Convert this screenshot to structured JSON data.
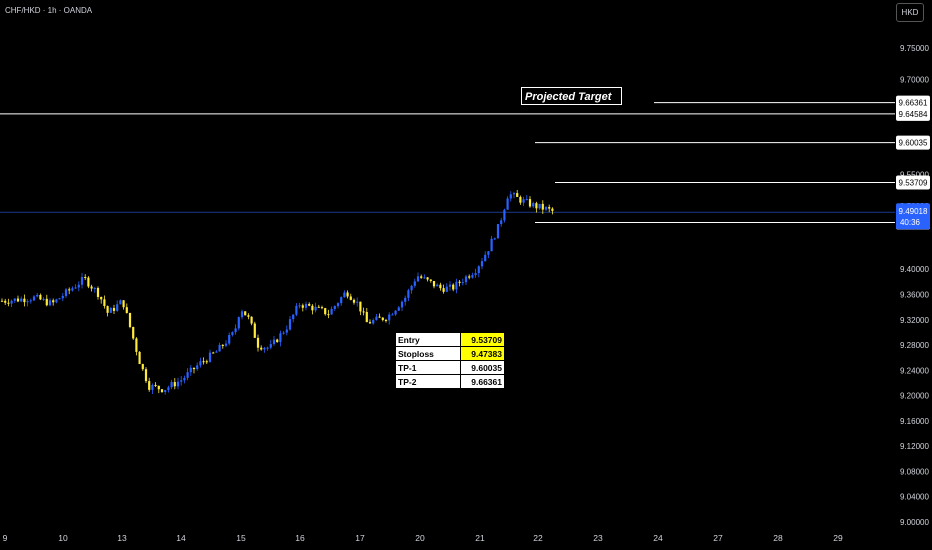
{
  "header": {
    "symbol": "CHF/HKD · 1h · OANDA",
    "currency": "HKD"
  },
  "annotations": {
    "projected_target": "Projected Target"
  },
  "price_tags": {
    "current_price": "9.49018",
    "countdown": "40:36",
    "accent_color": "#2962ff"
  },
  "levels_table": {
    "rows": [
      {
        "label": "Entry",
        "value": "9.53709",
        "highlight": true
      },
      {
        "label": "Stoploss",
        "value": "9.47383",
        "highlight": true
      },
      {
        "label": "TP-1",
        "value": "9.60035",
        "highlight": false
      },
      {
        "label": "TP-2",
        "value": "9.66361",
        "highlight": false
      }
    ]
  },
  "chart_data": {
    "type": "candlestick",
    "title": "",
    "xlabel": "",
    "ylabel": "",
    "ylim": [
      9.0,
      9.78
    ],
    "y_ticks": [
      "9.75000",
      "9.70000",
      "9.55000",
      "9.50000",
      "9.40000",
      "9.36000",
      "9.32000",
      "9.28000",
      "9.24000",
      "9.20000",
      "9.16000",
      "9.12000",
      "9.08000",
      "9.04000",
      "9.00000"
    ],
    "x_ticks": [
      "9",
      "10",
      "13",
      "14",
      "15",
      "16",
      "17",
      "20",
      "21",
      "22",
      "23",
      "24",
      "27",
      "28",
      "29"
    ],
    "horizontal_levels": [
      {
        "price": 9.66361,
        "label": "9.66361"
      },
      {
        "price": 9.64584,
        "label": "9.64584"
      },
      {
        "price": 9.60035,
        "label": "9.60035"
      },
      {
        "price": 9.53709,
        "label": "9.53709"
      },
      {
        "price": 9.47383,
        "label": "9.47383"
      }
    ],
    "current_price": 9.49018,
    "up_color": "#2962ff",
    "down_color": "#ffeb3b",
    "price_path": [
      {
        "t": 0.0,
        "p": 9.35
      },
      {
        "t": 0.5,
        "p": 9.355
      },
      {
        "t": 0.8,
        "p": 9.345
      },
      {
        "t": 1.0,
        "p": 9.36
      },
      {
        "t": 1.35,
        "p": 9.385
      },
      {
        "t": 1.6,
        "p": 9.36
      },
      {
        "t": 1.75,
        "p": 9.33
      },
      {
        "t": 2.0,
        "p": 9.35
      },
      {
        "t": 2.15,
        "p": 9.3
      },
      {
        "t": 2.3,
        "p": 9.25
      },
      {
        "t": 2.45,
        "p": 9.215
      },
      {
        "t": 2.7,
        "p": 9.21
      },
      {
        "t": 3.0,
        "p": 9.225
      },
      {
        "t": 3.3,
        "p": 9.25
      },
      {
        "t": 3.6,
        "p": 9.27
      },
      {
        "t": 3.9,
        "p": 9.3
      },
      {
        "t": 4.0,
        "p": 9.34
      },
      {
        "t": 4.15,
        "p": 9.32
      },
      {
        "t": 4.3,
        "p": 9.28
      },
      {
        "t": 4.5,
        "p": 9.275
      },
      {
        "t": 4.8,
        "p": 9.31
      },
      {
        "t": 5.0,
        "p": 9.345
      },
      {
        "t": 5.2,
        "p": 9.34
      },
      {
        "t": 5.5,
        "p": 9.33
      },
      {
        "t": 5.8,
        "p": 9.365
      },
      {
        "t": 6.0,
        "p": 9.345
      },
      {
        "t": 6.15,
        "p": 9.315
      },
      {
        "t": 6.5,
        "p": 9.325
      },
      {
        "t": 6.8,
        "p": 9.355
      },
      {
        "t": 7.0,
        "p": 9.39
      },
      {
        "t": 7.2,
        "p": 9.38
      },
      {
        "t": 7.4,
        "p": 9.37
      },
      {
        "t": 7.6,
        "p": 9.37
      },
      {
        "t": 7.8,
        "p": 9.385
      },
      {
        "t": 8.0,
        "p": 9.4
      },
      {
        "t": 8.2,
        "p": 9.43
      },
      {
        "t": 8.4,
        "p": 9.47
      },
      {
        "t": 8.55,
        "p": 9.52
      },
      {
        "t": 8.75,
        "p": 9.51
      },
      {
        "t": 9.0,
        "p": 9.5
      },
      {
        "t": 9.2,
        "p": 9.495
      },
      {
        "t": 9.35,
        "p": 9.49
      }
    ]
  }
}
